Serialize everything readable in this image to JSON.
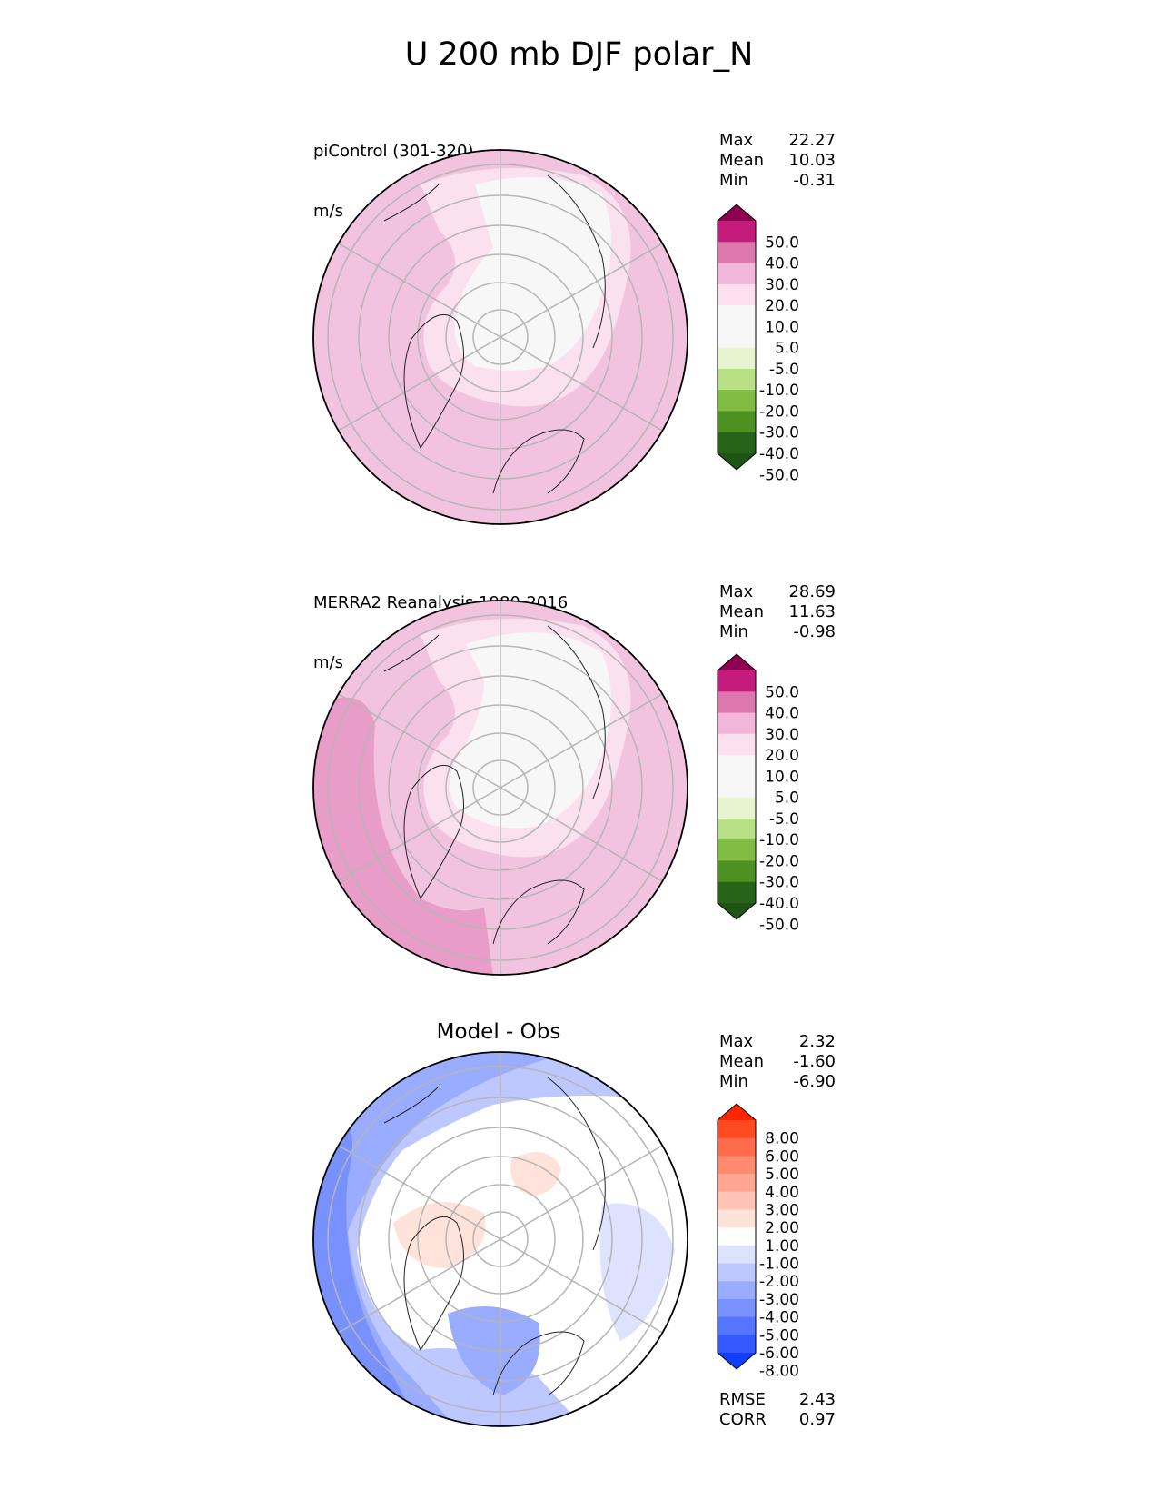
{
  "figure_title": "U 200 mb DJF polar_N",
  "chart_data": [
    {
      "type": "heatmap",
      "projection": "north polar stereographic",
      "title": "piControl (301-320)",
      "units": "m/s",
      "stats": [
        {
          "label": "Max",
          "value": "22.27"
        },
        {
          "label": "Mean",
          "value": "10.03"
        },
        {
          "label": "Min",
          "value": "-0.31"
        }
      ],
      "colorbar": {
        "levels": [
          "50.0",
          "40.0",
          "30.0",
          "20.0",
          "10.0",
          "5.0",
          "-5.0",
          "-10.0",
          "-20.0",
          "-30.0",
          "-40.0",
          "-50.0"
        ],
        "colors": [
          "#8e0152",
          "#c51b7d",
          "#de77ae",
          "#f1b6da",
          "#fde0ef",
          "#f7f7f7",
          "#f7f7f7",
          "#e6f5d0",
          "#b8e186",
          "#7fbc41",
          "#4d9221",
          "#276419",
          "#1f5514"
        ]
      }
    },
    {
      "type": "heatmap",
      "projection": "north polar stereographic",
      "title": "MERRA2 Reanalysis 1980-2016",
      "units": "m/s",
      "stats": [
        {
          "label": "Max",
          "value": "28.69"
        },
        {
          "label": "Mean",
          "value": "11.63"
        },
        {
          "label": "Min",
          "value": "-0.98"
        }
      ],
      "colorbar": {
        "levels": [
          "50.0",
          "40.0",
          "30.0",
          "20.0",
          "10.0",
          "5.0",
          "-5.0",
          "-10.0",
          "-20.0",
          "-30.0",
          "-40.0",
          "-50.0"
        ],
        "colors": [
          "#8e0152",
          "#c51b7d",
          "#de77ae",
          "#f1b6da",
          "#fde0ef",
          "#f7f7f7",
          "#f7f7f7",
          "#e6f5d0",
          "#b8e186",
          "#7fbc41",
          "#4d9221",
          "#276419",
          "#1f5514"
        ]
      }
    },
    {
      "type": "heatmap",
      "projection": "north polar stereographic",
      "title": "Model - Obs",
      "stats": [
        {
          "label": "Max",
          "value": "2.32"
        },
        {
          "label": "Mean",
          "value": "-1.60"
        },
        {
          "label": "Min",
          "value": "-6.90"
        }
      ],
      "metrics": [
        {
          "label": "RMSE",
          "value": "2.43"
        },
        {
          "label": "CORR",
          "value": "0.97"
        }
      ],
      "colorbar": {
        "levels": [
          "8.00",
          "6.00",
          "5.00",
          "4.00",
          "3.00",
          "2.00",
          "1.00",
          "-1.00",
          "-2.00",
          "-3.00",
          "-4.00",
          "-5.00",
          "-6.00",
          "-8.00"
        ],
        "colors": [
          "#ff2600",
          "#ff4a22",
          "#ff6c4c",
          "#ff8a6e",
          "#ffa692",
          "#ffc4b6",
          "#ffe2da",
          "#ffffff",
          "#dde3ff",
          "#bcc8ff",
          "#9aacff",
          "#7891ff",
          "#5675ff",
          "#345aff",
          "#123eff"
        ]
      }
    }
  ]
}
